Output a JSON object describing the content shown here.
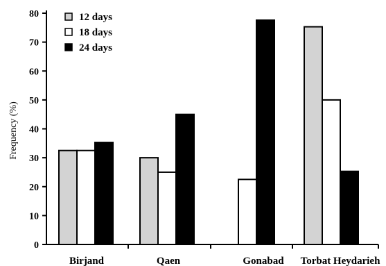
{
  "chart_data": {
    "type": "bar",
    "title": "",
    "xlabel": "",
    "ylabel": "Frequency (%)",
    "ylim": [
      0,
      80
    ],
    "yticks": [
      0,
      10,
      20,
      30,
      40,
      50,
      60,
      70,
      80
    ],
    "categories": [
      "Birjand",
      "Qaen",
      "Gonabad",
      "Torbat Heydarieh"
    ],
    "series": [
      {
        "name": "12 days",
        "values": [
          32.5,
          30,
          0,
          75.3
        ],
        "fill": "#d3d3d3"
      },
      {
        "name": "18 days",
        "values": [
          32.5,
          25,
          22.5,
          50
        ],
        "fill": "#ffffff"
      },
      {
        "name": "24 days",
        "values": [
          35.3,
          45,
          77.6,
          25.3
        ],
        "fill": "#000000"
      }
    ],
    "legend": "top-left",
    "grid": false
  }
}
